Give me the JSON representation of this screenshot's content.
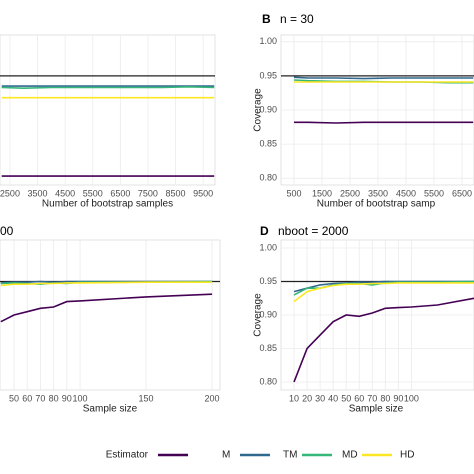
{
  "chart_data": [
    {
      "type": "line",
      "panel": null,
      "title": null,
      "xlabel": "Number of bootstrap samples",
      "ylabel": null,
      "x": [
        2200,
        3000,
        4000,
        5000,
        6000,
        7000,
        8000,
        9000,
        9900
      ],
      "xlim": [
        2140,
        9930
      ],
      "xticks": [
        2500,
        3500,
        4500,
        5500,
        6500,
        7500,
        8500,
        9500
      ],
      "ylim": [
        0.79,
        1.01
      ],
      "reference_line": 0.95,
      "series": [
        {
          "name": "M",
          "color": "#440154",
          "values": [
            0.803,
            0.803,
            0.803,
            0.803,
            0.803,
            0.803,
            0.803,
            0.803,
            0.803
          ]
        },
        {
          "name": "TM",
          "color": "#31688e",
          "values": [
            0.935,
            0.935,
            0.935,
            0.935,
            0.935,
            0.935,
            0.935,
            0.935,
            0.935
          ]
        },
        {
          "name": "MD",
          "color": "#35b779",
          "values": [
            0.933,
            0.932,
            0.933,
            0.933,
            0.933,
            0.933,
            0.933,
            0.934,
            0.933
          ]
        },
        {
          "name": "HD",
          "color": "#fde725",
          "values": [
            0.918,
            0.918,
            0.918,
            0.918,
            0.918,
            0.918,
            0.918,
            0.918,
            0.918
          ]
        }
      ]
    },
    {
      "type": "line",
      "panel": "B",
      "title": "n = 30",
      "xlabel": "Number of bootstrap samp",
      "ylabel": "Coverage",
      "x": [
        500,
        1000,
        2000,
        3000,
        4000,
        5000,
        6000,
        6900
      ],
      "xlim": [
        36,
        6930
      ],
      "xticks": [
        500,
        1500,
        2500,
        3500,
        4500,
        5500,
        6500
      ],
      "ylim": [
        0.79,
        1.01
      ],
      "yticks": [
        {
          "value": 0.8,
          "label": "0.80"
        },
        0.85,
        {
          "value": 0.9,
          "label": "0.90"
        },
        0.95,
        {
          "value": 1,
          "label": "1.00"
        }
      ],
      "reference_line": 0.95,
      "series": [
        {
          "name": "M",
          "color": "#440154",
          "values": [
            0.882,
            0.882,
            0.881,
            0.882,
            0.882,
            0.882,
            0.882,
            0.882
          ]
        },
        {
          "name": "TM",
          "color": "#31688e",
          "values": [
            0.948,
            0.947,
            0.947,
            0.946,
            0.947,
            0.947,
            0.947,
            0.947
          ]
        },
        {
          "name": "MD",
          "color": "#35b779",
          "values": [
            0.944,
            0.943,
            0.942,
            0.942,
            0.941,
            0.941,
            0.94,
            0.94
          ]
        },
        {
          "name": "HD",
          "color": "#fde725",
          "values": [
            0.941,
            0.941,
            0.941,
            0.941,
            0.941,
            0.941,
            0.941,
            0.941
          ]
        }
      ]
    },
    {
      "type": "line",
      "panel": null,
      "title": "00",
      "xlabel": "Sample size",
      "ylabel": null,
      "x": [
        40,
        50,
        60,
        70,
        80,
        90,
        100,
        150,
        200
      ],
      "xlim": [
        39.4,
        206
      ],
      "xticks": [
        50,
        60,
        70,
        80,
        90,
        100,
        150,
        200
      ],
      "ylim": [
        0.788,
        1.012
      ],
      "reference_line": 0.95,
      "series": [
        {
          "name": "M",
          "color": "#440154",
          "values": [
            0.89,
            0.9,
            0.905,
            0.91,
            0.912,
            0.92,
            0.921,
            0.927,
            0.931
          ]
        },
        {
          "name": "TM",
          "color": "#31688e",
          "values": [
            0.948,
            0.949,
            0.949,
            0.95,
            0.949,
            0.95,
            0.95,
            0.95,
            0.95
          ]
        },
        {
          "name": "MD",
          "color": "#35b779",
          "values": [
            0.947,
            0.948,
            0.947,
            0.946,
            0.948,
            0.947,
            0.949,
            0.949,
            0.95
          ]
        },
        {
          "name": "HD",
          "color": "#fde725",
          "values": [
            0.944,
            0.946,
            0.946,
            0.947,
            0.947,
            0.948,
            0.948,
            0.949,
            0.949
          ]
        }
      ]
    },
    {
      "type": "line",
      "panel": "D",
      "title": "nboot = 2000",
      "xlabel": "Sample size",
      "ylabel": "Coverage",
      "x": [
        10,
        20,
        30,
        40,
        50,
        60,
        70,
        80,
        90,
        100,
        120,
        148
      ],
      "xlim": [
        0,
        148
      ],
      "xticks": [
        10,
        20,
        30,
        40,
        50,
        60,
        70,
        80,
        90,
        100
      ],
      "ylim": [
        0.788,
        1.012
      ],
      "yticks": [
        {
          "value": 0.8,
          "label": "0.80"
        },
        0.85,
        {
          "value": 0.9,
          "label": "0.90"
        },
        0.95,
        {
          "value": 1,
          "label": "1.00"
        }
      ],
      "reference_line": 0.95,
      "series": [
        {
          "name": "M",
          "color": "#440154",
          "values": [
            0.8,
            0.85,
            0.87,
            0.89,
            0.9,
            0.898,
            0.903,
            0.91,
            0.911,
            0.912,
            0.915,
            0.925
          ]
        },
        {
          "name": "TM",
          "color": "#31688e",
          "values": [
            0.935,
            0.94,
            0.945,
            0.947,
            0.948,
            0.949,
            0.949,
            0.95,
            0.95,
            0.95,
            0.95,
            0.95
          ]
        },
        {
          "name": "MD",
          "color": "#35b779",
          "values": [
            0.93,
            0.94,
            0.94,
            0.945,
            0.947,
            0.947,
            0.945,
            0.948,
            0.949,
            0.949,
            0.949,
            0.95
          ]
        },
        {
          "name": "HD",
          "color": "#fde725",
          "values": [
            0.92,
            0.935,
            0.94,
            0.944,
            0.946,
            0.946,
            0.947,
            0.947,
            0.948,
            0.948,
            0.948,
            0.948
          ]
        }
      ]
    }
  ],
  "legend": {
    "title": "Estimator"
  }
}
